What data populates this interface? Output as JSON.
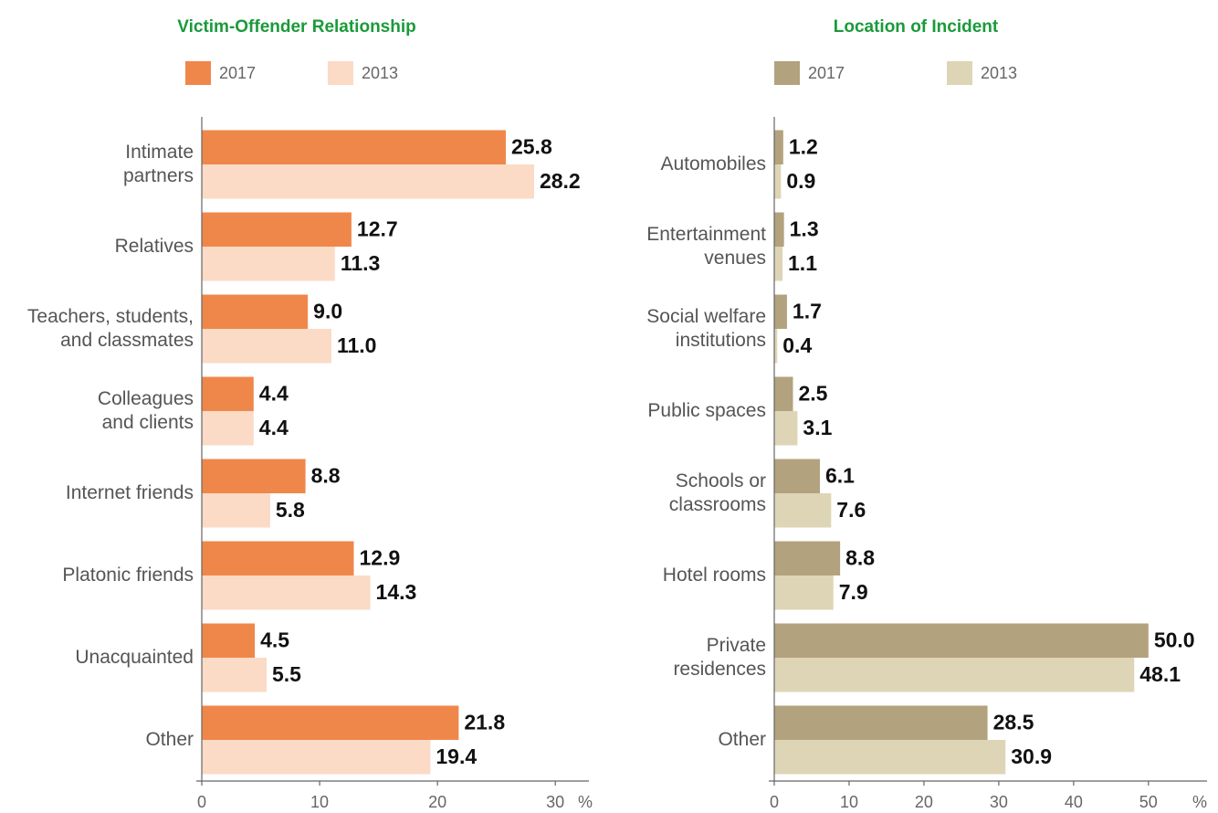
{
  "chart_data": [
    {
      "type": "hbar",
      "title": "Victim-Offender Relationship",
      "categories": [
        "Intimate\npartners",
        "Relatives",
        "Teachers, students,\nand classmates",
        "Colleagues\nand clients",
        "Internet friends",
        "Platonic friends",
        "Unacquainted",
        "Other"
      ],
      "series": [
        {
          "name": "2017",
          "color": "#f0874a",
          "values": [
            25.8,
            12.7,
            9.0,
            4.4,
            8.8,
            12.9,
            4.5,
            21.8
          ],
          "value_labels": [
            "25.8",
            "12.7",
            "9.0",
            "4.4",
            "8.8",
            "12.9",
            "4.5",
            "21.8"
          ]
        },
        {
          "name": "2013",
          "color": "#fbdac6",
          "values": [
            28.2,
            11.3,
            11.0,
            4.4,
            5.8,
            14.3,
            5.5,
            19.4
          ],
          "value_labels": [
            "28.2",
            "11.3",
            "11.0",
            "4.4",
            "5.8",
            "14.3",
            "5.5",
            "19.4"
          ]
        }
      ],
      "xlim": [
        0,
        32
      ],
      "xticks": [
        0,
        10,
        20,
        30
      ],
      "xlabel": "%"
    },
    {
      "type": "hbar",
      "title": "Location of Incident",
      "categories": [
        "Automobiles",
        "Entertainment\nvenues",
        "Social welfare\ninstitutions",
        "Public spaces",
        "Schools or\nclassrooms",
        "Hotel rooms",
        "Private\nresidences",
        "Other"
      ],
      "series": [
        {
          "name": "2017",
          "color": "#b3a27e",
          "values": [
            1.2,
            1.3,
            1.7,
            2.5,
            6.1,
            8.8,
            50.0,
            28.5
          ],
          "value_labels": [
            "1.2",
            "1.3",
            "1.7",
            "2.5",
            "6.1",
            "8.8",
            "50.0",
            "28.5"
          ]
        },
        {
          "name": "2013",
          "color": "#ddd5b5",
          "values": [
            0.9,
            1.1,
            0.4,
            3.1,
            7.6,
            7.9,
            48.1,
            30.9
          ],
          "value_labels": [
            "0.9",
            "1.1",
            "0.4",
            "3.1",
            "7.6",
            "7.9",
            "48.1",
            "30.9"
          ]
        }
      ],
      "xlim": [
        0,
        56
      ],
      "xticks": [
        0,
        10,
        20,
        30,
        40,
        50
      ],
      "xlabel": "%"
    }
  ]
}
